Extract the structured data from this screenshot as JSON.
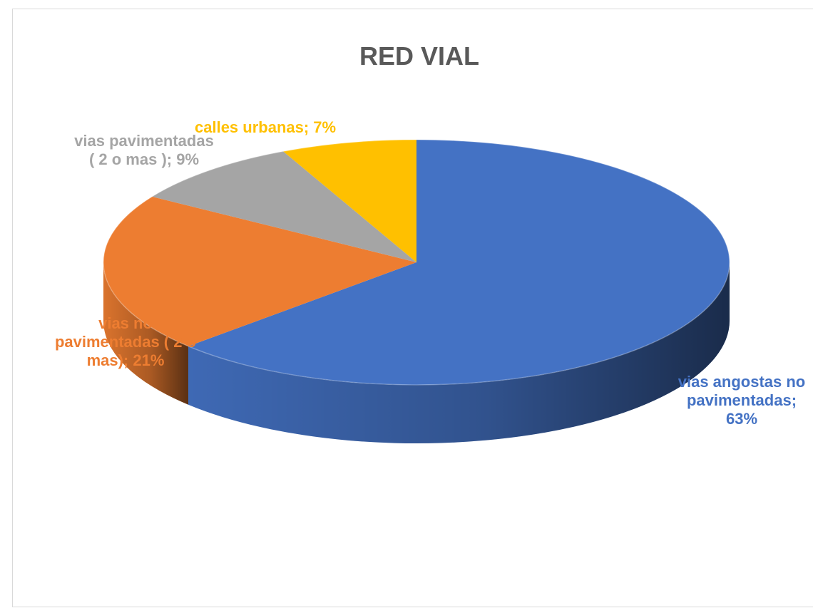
{
  "chart_data": {
    "type": "pie",
    "style": "3d",
    "title": "RED VIAL",
    "slices": [
      {
        "name": "vias angostas no pavimentadas",
        "value": 63,
        "color": "#4472C4",
        "label_lines": [
          "vias angostas no",
          "pavimentadas;",
          "63%"
        ]
      },
      {
        "name": "vias no pavimentadas ( 2 o mas)",
        "value": 21,
        "color": "#ED7D31",
        "label_lines": [
          "vias no",
          "pavimentadas ( 2 o",
          "mas); 21%"
        ]
      },
      {
        "name": "vias pavimentadas ( 2 o mas )",
        "value": 9,
        "color": "#A5A5A5",
        "label_lines": [
          "vias pavimentadas",
          "( 2 o mas ); 9%"
        ]
      },
      {
        "name": "calles urbanas",
        "value": 7,
        "color": "#FFC000",
        "label_lines": [
          "calles urbanas; 7%"
        ]
      }
    ]
  }
}
